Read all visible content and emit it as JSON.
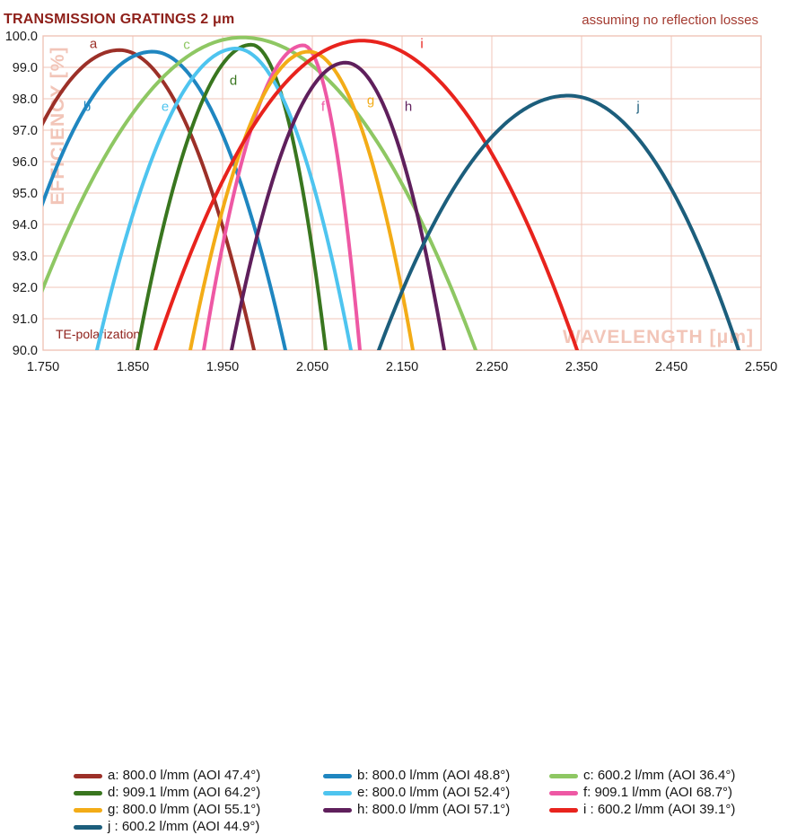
{
  "title": "TRANSMISSION GRATINGS 2 μm",
  "annotation": "assuming no reflection losses",
  "polarization_note": "TE-polarization",
  "colors": {
    "title_text": "#8e1f19",
    "annotation_text": "#a43b31",
    "grid": "#f2c5b8",
    "plot_border": "#eec0b2",
    "axis_watermark": "#f2c5b8",
    "tick_text": "#1a1a1a",
    "legend_text": "#141414"
  },
  "chart_data": {
    "type": "line",
    "title": "TRANSMISSION GRATINGS 2 μm",
    "xlabel": "WAVELENGTH [μm]",
    "ylabel": "EFFICIENCY [%]",
    "xlim": [
      1.75,
      2.55
    ],
    "ylim": [
      90.0,
      100.0
    ],
    "grid": true,
    "legend_position": "bottom",
    "x_ticks": [
      "1.750",
      "1.850",
      "1.950",
      "2.050",
      "2.150",
      "2.250",
      "2.350",
      "2.450",
      "2.550"
    ],
    "y_ticks": [
      "100.0",
      "99.0",
      "98.0",
      "97.0",
      "96.0",
      "95.0",
      "94.0",
      "93.0",
      "92.0",
      "91.0",
      "90.0"
    ],
    "series": [
      {
        "id": "a",
        "label": "a: 800.0 l/mm (AOI 47.4°)",
        "color": "#9c3028",
        "peak": [
          1.835,
          99.55
        ],
        "cross90_left": 1.662,
        "cross90_right": 1.985,
        "label_pos": [
          1.806,
          99.62
        ]
      },
      {
        "id": "b",
        "label": "b: 800.0 l/mm (AOI 48.8°)",
        "color": "#1f86c0",
        "peak": [
          1.872,
          99.5
        ],
        "cross90_left": 1.7,
        "cross90_right": 2.02,
        "label_pos": [
          1.799,
          97.62
        ]
      },
      {
        "id": "c",
        "label": "c: 600.2 l/mm (AOI 36.4°)",
        "color": "#8ec763",
        "peak": [
          1.972,
          99.95
        ],
        "cross90_left": 1.724,
        "cross90_right": 2.232,
        "label_pos": [
          1.91,
          99.58
        ]
      },
      {
        "id": "d",
        "label": "d: 909.1 l/mm (AOI 64.2°)",
        "color": "#39761f",
        "peak": [
          1.982,
          99.72
        ],
        "cross90_left": 1.855,
        "cross90_right": 2.065,
        "label_pos": [
          1.962,
          98.45
        ]
      },
      {
        "id": "e",
        "label": "e: 800.0 l/mm (AOI 52.4°)",
        "color": "#4ec4ef",
        "peak": [
          1.965,
          99.6
        ],
        "cross90_left": 1.81,
        "cross90_right": 2.093,
        "label_pos": [
          1.886,
          97.62
        ]
      },
      {
        "id": "f",
        "label": "f: 909.1 l/mm (AOI 68.7°)",
        "color": "#ee58a4",
        "peak": [
          2.04,
          99.7
        ],
        "cross90_left": 1.929,
        "cross90_right": 2.103,
        "label_pos": [
          2.062,
          97.62
        ]
      },
      {
        "id": "g",
        "label": "g: 800.0 l/mm (AOI 55.1°)",
        "color": "#f3ac17",
        "peak": [
          2.046,
          99.5
        ],
        "cross90_left": 1.914,
        "cross90_right": 2.162,
        "label_pos": [
          2.115,
          97.82
        ]
      },
      {
        "id": "h",
        "label": "h: 800.0 l/mm (AOI 57.1°)",
        "color": "#5f1f5c",
        "peak": [
          2.087,
          99.15
        ],
        "cross90_left": 1.96,
        "cross90_right": 2.197,
        "label_pos": [
          2.157,
          97.62
        ]
      },
      {
        "id": "i",
        "label": "i : 600.2 l/mm (AOI 39.1°)",
        "color": "#e8231d",
        "peak": [
          2.105,
          99.85
        ],
        "cross90_left": 1.875,
        "cross90_right": 2.345,
        "label_pos": [
          2.172,
          99.62
        ]
      },
      {
        "id": "j",
        "label": "j : 600.2 l/mm (AOI 44.9°)",
        "color": "#1c5e7c",
        "peak": [
          2.335,
          98.1
        ],
        "cross90_left": 2.124,
        "cross90_right": 2.525,
        "label_pos": [
          2.413,
          97.62
        ]
      }
    ],
    "legend_columns": [
      [
        "a",
        "d",
        "g",
        "j"
      ],
      [
        "b",
        "e",
        "h"
      ],
      [
        "c",
        "f",
        "i"
      ]
    ]
  }
}
